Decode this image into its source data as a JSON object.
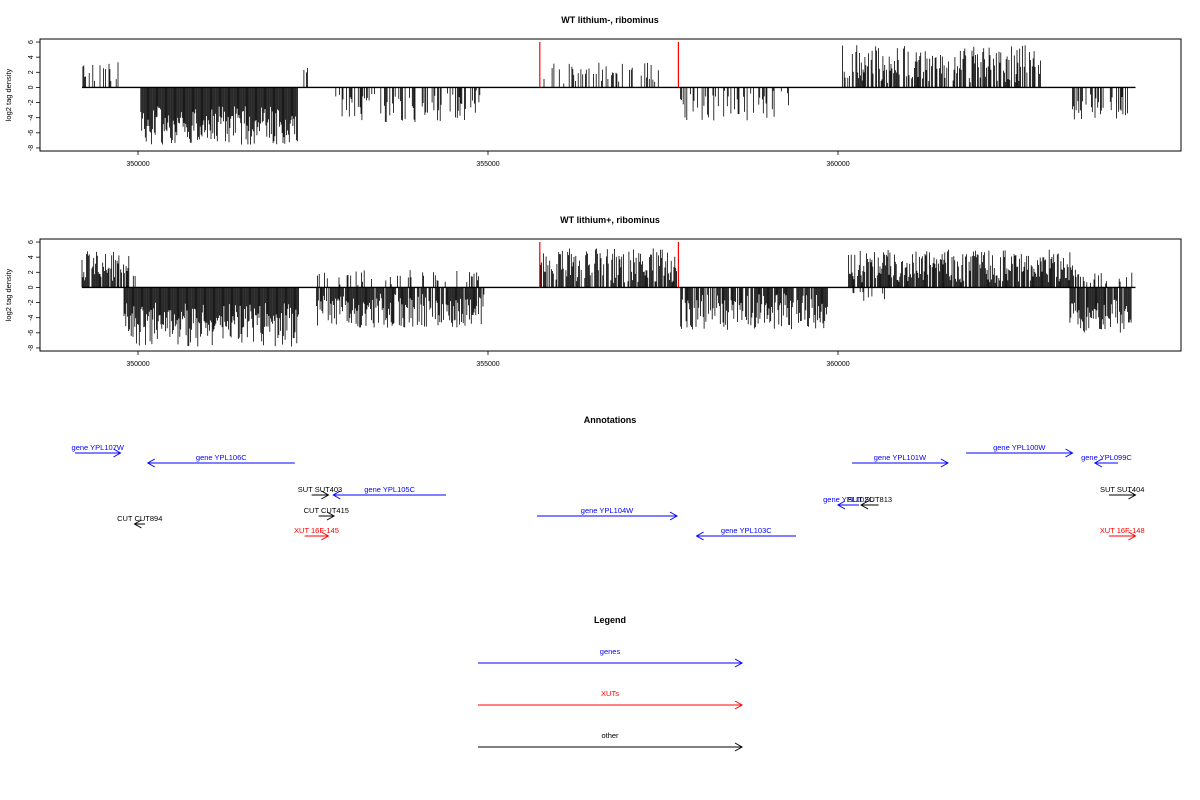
{
  "colors": {
    "genes": "#0000ff",
    "xuts": "#ff0000",
    "other": "#000000",
    "marker": "#ff0000",
    "signal": "#000000"
  },
  "chart_data": [
    {
      "type": "bar",
      "title": "WT lithium-, ribominus",
      "ylabel": "log2 tag density",
      "xlim": [
        348600,
        364900
      ],
      "ylim": [
        -8.4,
        6.4
      ],
      "xticks": [
        350000,
        355000,
        360000
      ],
      "xtick_labels": [
        "350000",
        "355000",
        "360000"
      ],
      "yticks": [
        6,
        4,
        2,
        0,
        -2,
        -4,
        -6,
        -8
      ],
      "ytick_labels": [
        "6",
        "4",
        "2",
        "0",
        "-2",
        "-4",
        "-6",
        "-8"
      ],
      "baseline": {
        "from": 349200,
        "to": 364250
      },
      "markers": [
        355740,
        357720
      ],
      "regions": [
        {
          "from": 349200,
          "to": 349720,
          "sign": 1,
          "min": 0.6,
          "max": 3.4,
          "density": 0.35
        },
        {
          "from": 350040,
          "to": 352280,
          "sign": -1,
          "min": 2.5,
          "max": 7.6,
          "density": 1.0
        },
        {
          "from": 352370,
          "to": 352460,
          "sign": 1,
          "min": 1.0,
          "max": 2.6,
          "density": 0.6
        },
        {
          "from": 352800,
          "to": 354900,
          "sign": -1,
          "min": 0.4,
          "max": 4.6,
          "density": 0.45
        },
        {
          "from": 355800,
          "to": 357500,
          "sign": 1,
          "min": 0.4,
          "max": 3.3,
          "density": 0.3
        },
        {
          "from": 357750,
          "to": 359300,
          "sign": -1,
          "min": 0.4,
          "max": 4.4,
          "density": 0.35
        },
        {
          "from": 360050,
          "to": 362900,
          "sign": 1,
          "min": 0.6,
          "max": 5.6,
          "density": 0.6
        },
        {
          "from": 363350,
          "to": 364150,
          "sign": -1,
          "min": 0.8,
          "max": 4.3,
          "density": 0.45
        }
      ]
    },
    {
      "type": "bar",
      "title": "WT lithium+, ribominus",
      "ylabel": "log2 tag density",
      "xlim": [
        348600,
        364900
      ],
      "ylim": [
        -8.4,
        6.4
      ],
      "xticks": [
        350000,
        355000,
        360000
      ],
      "xtick_labels": [
        "350000",
        "355000",
        "360000"
      ],
      "yticks": [
        6,
        4,
        2,
        0,
        -2,
        -4,
        -6,
        -8
      ],
      "ytick_labels": [
        "6",
        "4",
        "2",
        "0",
        "-2",
        "-4",
        "-6",
        "-8"
      ],
      "baseline": {
        "from": 349200,
        "to": 364250
      },
      "markers": [
        355740,
        357720
      ],
      "regions": [
        {
          "from": 349200,
          "to": 349970,
          "sign": 1,
          "min": 0.8,
          "max": 4.8,
          "density": 0.8
        },
        {
          "from": 349800,
          "to": 352300,
          "sign": -1,
          "min": 2.0,
          "max": 7.8,
          "density": 1.0
        },
        {
          "from": 352550,
          "to": 354950,
          "sign": -1,
          "min": 0.8,
          "max": 5.3,
          "density": 0.85
        },
        {
          "from": 352550,
          "to": 354900,
          "sign": 1,
          "min": 0.3,
          "max": 2.4,
          "density": 0.25
        },
        {
          "from": 355740,
          "to": 357720,
          "sign": 1,
          "min": 0.6,
          "max": 5.2,
          "density": 0.7
        },
        {
          "from": 357740,
          "to": 359850,
          "sign": -1,
          "min": 0.8,
          "max": 5.6,
          "density": 0.8
        },
        {
          "from": 360150,
          "to": 363400,
          "sign": 1,
          "min": 0.6,
          "max": 5.0,
          "density": 0.9
        },
        {
          "from": 360150,
          "to": 360700,
          "sign": -1,
          "min": 0.3,
          "max": 1.8,
          "density": 0.2
        },
        {
          "from": 363300,
          "to": 364200,
          "sign": -1,
          "min": 1.5,
          "max": 6.0,
          "density": 0.85
        },
        {
          "from": 363400,
          "to": 364200,
          "sign": 1,
          "min": 0.5,
          "max": 2.0,
          "density": 0.3
        }
      ]
    }
  ],
  "annotations": {
    "title": "Annotations",
    "features": [
      {
        "label": "gene YPL107W",
        "type": "genes",
        "strand": "+",
        "start": 349100,
        "end": 349750
      },
      {
        "label": "gene YPL106C",
        "type": "genes",
        "strand": "-",
        "start": 350140,
        "end": 352240
      },
      {
        "label": "gene YPL105C",
        "type": "genes",
        "strand": "-",
        "start": 352790,
        "end": 354400
      },
      {
        "label": "gene YPL104W",
        "type": "genes",
        "strand": "+",
        "start": 355700,
        "end": 357700
      },
      {
        "label": "gene YPL103C",
        "type": "genes",
        "strand": "-",
        "start": 357980,
        "end": 359400
      },
      {
        "label": "gene YPL102C",
        "type": "genes",
        "strand": "-",
        "start": 360000,
        "end": 360300
      },
      {
        "label": "gene YPL101W",
        "type": "genes",
        "strand": "+",
        "start": 360200,
        "end": 361570
      },
      {
        "label": "gene YPL100W",
        "type": "genes",
        "strand": "+",
        "start": 361830,
        "end": 363350
      },
      {
        "label": "gene YPL099C",
        "type": "genes",
        "strand": "-",
        "start": 363670,
        "end": 364000
      },
      {
        "label": "SUT SUT403",
        "type": "other",
        "strand": "+",
        "start": 352480,
        "end": 352720
      },
      {
        "label": "CUT CUT415",
        "type": "other",
        "strand": "+",
        "start": 352580,
        "end": 352800
      },
      {
        "label": "CUT CUT894",
        "type": "other",
        "strand": "-",
        "start": 349950,
        "end": 350100
      },
      {
        "label": "XUT 16F-145",
        "type": "xuts",
        "strand": "+",
        "start": 352380,
        "end": 352720
      },
      {
        "label": "SUT SUT813",
        "type": "other",
        "strand": "-",
        "start": 360330,
        "end": 360580
      },
      {
        "label": "SUT SUT404",
        "type": "other",
        "strand": "+",
        "start": 363870,
        "end": 364250
      },
      {
        "label": "XUT 16F-148",
        "type": "xuts",
        "strand": "+",
        "start": 363870,
        "end": 364250
      }
    ]
  },
  "legend": {
    "title": "Legend",
    "items": [
      {
        "label": "genes",
        "type": "genes"
      },
      {
        "label": "XUTs",
        "type": "xuts"
      },
      {
        "label": "other",
        "type": "other"
      }
    ]
  }
}
